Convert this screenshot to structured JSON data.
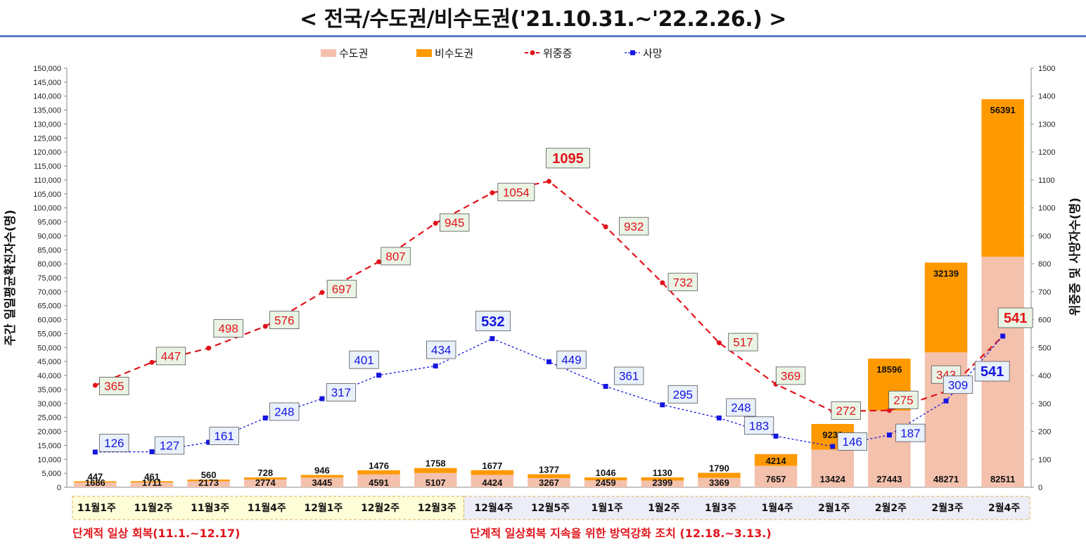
{
  "title": "< 전국/수도권/비수도권('21.10.31.~'22.2.26.) >",
  "chart_data": {
    "type": "bar",
    "stacked": true,
    "categories": [
      "11월1주",
      "11월2주",
      "11월3주",
      "11월4주",
      "12월1주",
      "12월2주",
      "12월3주",
      "12월4주",
      "12월5주",
      "1월1주",
      "1월2주",
      "1월3주",
      "1월4주",
      "2월1주",
      "2월2주",
      "2월3주",
      "2월4주"
    ],
    "ylabel": "주간 일일평균확진자수(명)",
    "y2label": "위중증 및 사망자수(명)",
    "ylim": [
      0,
      150000
    ],
    "y2lim": [
      0,
      1500
    ],
    "series": [
      {
        "name": "수도권",
        "type": "bar",
        "axis": "left",
        "color": "#f4c1ad",
        "values": [
          1686,
          1711,
          2173,
          2774,
          3445,
          4591,
          5107,
          4424,
          3267,
          2459,
          2399,
          3369,
          7657,
          13424,
          27443,
          48271,
          82511
        ]
      },
      {
        "name": "비수도권",
        "type": "bar",
        "axis": "left",
        "color": "#ff9900",
        "values": [
          447,
          461,
          560,
          728,
          946,
          1476,
          1758,
          1677,
          1377,
          1046,
          1130,
          1790,
          4214,
          9230,
          18596,
          32139,
          56391
        ]
      },
      {
        "name": "위중증",
        "type": "line",
        "axis": "right",
        "color": "#e0141b",
        "values": [
          365,
          447,
          498,
          576,
          697,
          807,
          945,
          1054,
          1095,
          932,
          732,
          517,
          369,
          272,
          275,
          343,
          541
        ]
      },
      {
        "name": "사망",
        "type": "line",
        "axis": "right",
        "color": "#1515e0",
        "values": [
          126,
          127,
          161,
          248,
          317,
          401,
          434,
          532,
          449,
          361,
          295,
          248,
          183,
          146,
          187,
          309,
          541
        ]
      }
    ],
    "phases": [
      {
        "label": "단계적 일상 회복(11.1.~12.17)",
        "from": 0,
        "to": 6,
        "color": "#fdfdd8"
      },
      {
        "label": "단계적 일상회복 지속을 위한 방역강화 조치 (12.18.~3.13.)",
        "from": 7,
        "to": 16,
        "color": "#ededf8"
      }
    ]
  }
}
